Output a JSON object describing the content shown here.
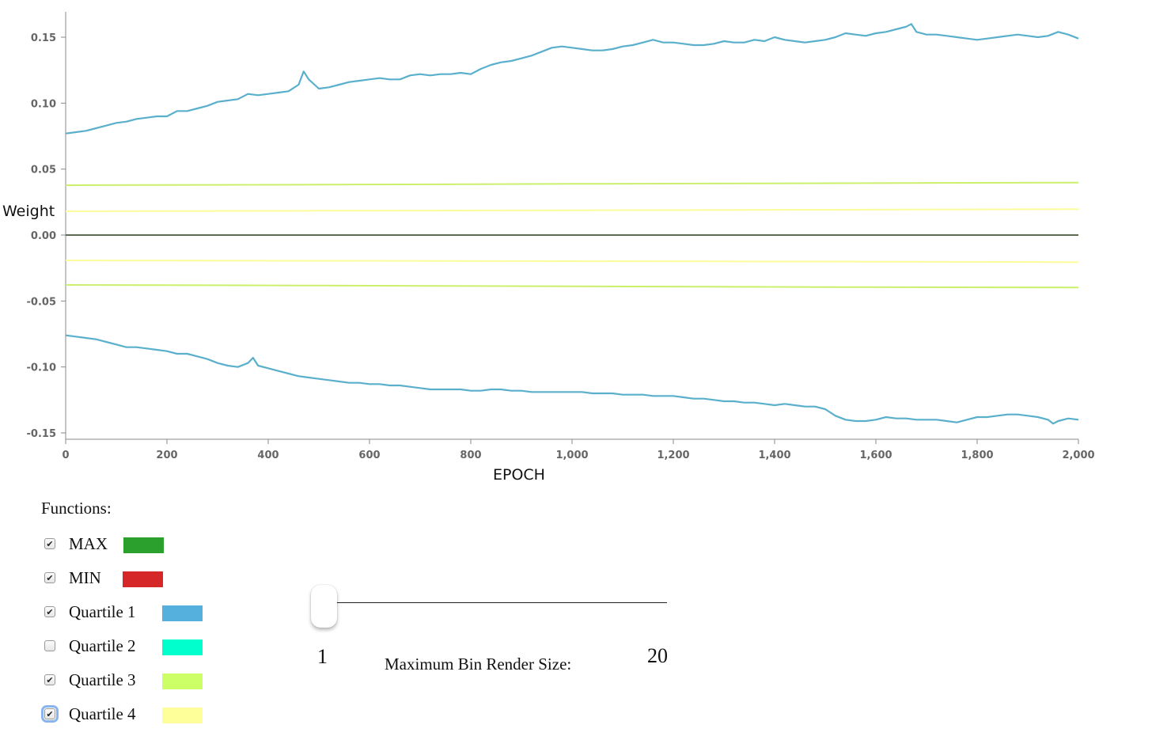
{
  "chart_data": {
    "type": "line",
    "xlabel": "EPOCH",
    "ylabel": "Weight",
    "xlim": [
      0,
      2000
    ],
    "ylim": [
      -0.155,
      0.175
    ],
    "x_ticks": [
      0,
      200,
      400,
      600,
      800,
      1000,
      1200,
      1400,
      1600,
      1800,
      2000
    ],
    "x_tick_labels": [
      "0",
      "200",
      "400",
      "600",
      "800",
      "1,000",
      "1,200",
      "1,400",
      "1,600",
      "1,800",
      "2,000"
    ],
    "y_ticks": [
      -0.15,
      -0.1,
      -0.05,
      0.0,
      0.05,
      0.1,
      0.15
    ],
    "y_tick_labels": [
      "-0.15",
      "-0.10",
      "-0.05",
      "0.00",
      "0.05",
      "0.10",
      "0.15"
    ],
    "grid": false,
    "series": [
      {
        "kind": "quartile1-upper",
        "color": "#5ab0cc",
        "x": [
          0,
          20,
          40,
          60,
          80,
          100,
          120,
          140,
          160,
          180,
          200,
          220,
          240,
          260,
          280,
          300,
          320,
          340,
          360,
          380,
          400,
          420,
          440,
          460,
          470,
          480,
          500,
          520,
          540,
          560,
          580,
          600,
          620,
          640,
          660,
          680,
          700,
          720,
          740,
          760,
          780,
          800,
          820,
          840,
          860,
          880,
          900,
          920,
          940,
          960,
          980,
          1000,
          1020,
          1040,
          1060,
          1080,
          1100,
          1120,
          1140,
          1160,
          1180,
          1200,
          1220,
          1240,
          1260,
          1280,
          1300,
          1320,
          1340,
          1360,
          1380,
          1400,
          1420,
          1440,
          1460,
          1480,
          1500,
          1520,
          1540,
          1560,
          1580,
          1600,
          1620,
          1640,
          1660,
          1670,
          1680,
          1700,
          1720,
          1740,
          1760,
          1780,
          1800,
          1820,
          1840,
          1860,
          1880,
          1900,
          1920,
          1940,
          1960,
          1980,
          2000
        ],
        "y": [
          0.077,
          0.078,
          0.079,
          0.081,
          0.083,
          0.085,
          0.086,
          0.088,
          0.089,
          0.09,
          0.09,
          0.094,
          0.094,
          0.096,
          0.098,
          0.101,
          0.102,
          0.103,
          0.107,
          0.106,
          0.107,
          0.108,
          0.109,
          0.114,
          0.124,
          0.118,
          0.111,
          0.112,
          0.114,
          0.116,
          0.117,
          0.118,
          0.119,
          0.118,
          0.118,
          0.121,
          0.122,
          0.121,
          0.122,
          0.122,
          0.123,
          0.122,
          0.126,
          0.129,
          0.131,
          0.132,
          0.134,
          0.136,
          0.139,
          0.142,
          0.143,
          0.142,
          0.141,
          0.14,
          0.14,
          0.141,
          0.143,
          0.144,
          0.146,
          0.148,
          0.146,
          0.146,
          0.145,
          0.144,
          0.144,
          0.145,
          0.147,
          0.146,
          0.146,
          0.148,
          0.147,
          0.15,
          0.148,
          0.147,
          0.146,
          0.147,
          0.148,
          0.15,
          0.153,
          0.152,
          0.151,
          0.153,
          0.154,
          0.156,
          0.158,
          0.16,
          0.154,
          0.152,
          0.152,
          0.151,
          0.15,
          0.149,
          0.148,
          0.149,
          0.15,
          0.151,
          0.152,
          0.151,
          0.15,
          0.151,
          0.154,
          0.152,
          0.149
        ]
      },
      {
        "kind": "quartile3-upper",
        "color": "#cbf06c",
        "x": [
          0,
          500,
          1000,
          1500,
          2000
        ],
        "y": [
          0.0378,
          0.0382,
          0.0388,
          0.0393,
          0.0398
        ]
      },
      {
        "kind": "quartile4-upper",
        "color": "#fcfc9c",
        "x": [
          0,
          500,
          1000,
          1500,
          2000
        ],
        "y": [
          0.018,
          0.0184,
          0.0188,
          0.0192,
          0.0196
        ]
      },
      {
        "kind": "zero-line",
        "color": "#5c6b52",
        "x": [
          0,
          2000
        ],
        "y": [
          0.0,
          0.0
        ]
      },
      {
        "kind": "quartile4-lower",
        "color": "#fcfc9c",
        "x": [
          0,
          500,
          1000,
          1500,
          2000
        ],
        "y": [
          -0.0192,
          -0.0195,
          -0.0198,
          -0.0201,
          -0.0205
        ]
      },
      {
        "kind": "quartile3-lower",
        "color": "#cbf06c",
        "x": [
          0,
          500,
          1000,
          1500,
          2000
        ],
        "y": [
          -0.0378,
          -0.0383,
          -0.0389,
          -0.0394,
          -0.0398
        ]
      },
      {
        "kind": "quartile1-lower",
        "color": "#5ab0cc",
        "x": [
          0,
          20,
          40,
          60,
          80,
          100,
          120,
          140,
          160,
          180,
          200,
          220,
          240,
          260,
          280,
          300,
          320,
          340,
          360,
          370,
          380,
          400,
          420,
          440,
          460,
          480,
          500,
          520,
          540,
          560,
          580,
          600,
          620,
          640,
          660,
          680,
          700,
          720,
          740,
          760,
          780,
          800,
          820,
          840,
          860,
          880,
          900,
          920,
          940,
          960,
          980,
          1000,
          1020,
          1040,
          1060,
          1080,
          1100,
          1120,
          1140,
          1160,
          1180,
          1200,
          1220,
          1240,
          1260,
          1280,
          1300,
          1320,
          1340,
          1360,
          1380,
          1400,
          1420,
          1440,
          1460,
          1480,
          1500,
          1520,
          1540,
          1560,
          1580,
          1600,
          1620,
          1640,
          1660,
          1680,
          1700,
          1720,
          1740,
          1760,
          1780,
          1800,
          1820,
          1840,
          1860,
          1880,
          1900,
          1920,
          1940,
          1950,
          1960,
          1980,
          2000
        ],
        "y": [
          -0.076,
          -0.077,
          -0.078,
          -0.079,
          -0.081,
          -0.083,
          -0.085,
          -0.085,
          -0.086,
          -0.087,
          -0.088,
          -0.09,
          -0.09,
          -0.092,
          -0.094,
          -0.097,
          -0.099,
          -0.1,
          -0.097,
          -0.093,
          -0.099,
          -0.101,
          -0.103,
          -0.105,
          -0.107,
          -0.108,
          -0.109,
          -0.11,
          -0.111,
          -0.112,
          -0.112,
          -0.113,
          -0.113,
          -0.114,
          -0.114,
          -0.115,
          -0.116,
          -0.117,
          -0.117,
          -0.117,
          -0.117,
          -0.118,
          -0.118,
          -0.117,
          -0.117,
          -0.118,
          -0.118,
          -0.119,
          -0.119,
          -0.119,
          -0.119,
          -0.119,
          -0.119,
          -0.12,
          -0.12,
          -0.12,
          -0.121,
          -0.121,
          -0.121,
          -0.122,
          -0.122,
          -0.122,
          -0.123,
          -0.124,
          -0.124,
          -0.125,
          -0.126,
          -0.126,
          -0.127,
          -0.127,
          -0.128,
          -0.129,
          -0.128,
          -0.129,
          -0.13,
          -0.13,
          -0.132,
          -0.137,
          -0.14,
          -0.141,
          -0.141,
          -0.14,
          -0.138,
          -0.139,
          -0.139,
          -0.14,
          -0.14,
          -0.14,
          -0.141,
          -0.142,
          -0.14,
          -0.138,
          -0.138,
          -0.137,
          -0.136,
          -0.136,
          -0.137,
          -0.138,
          -0.14,
          -0.143,
          -0.141,
          -0.139,
          -0.14
        ]
      }
    ]
  },
  "functions": {
    "label": "Functions:",
    "items": [
      {
        "key": "max",
        "label": "MAX",
        "checked": true,
        "color": "#2ca02c"
      },
      {
        "key": "min",
        "label": "MIN",
        "checked": true,
        "color": "#d62728"
      },
      {
        "key": "quartile-1",
        "label": "Quartile 1",
        "checked": true,
        "color": "#55b0de"
      },
      {
        "key": "quartile-2",
        "label": "Quartile 2",
        "checked": false,
        "color": "#00ffcc"
      },
      {
        "key": "quartile-3",
        "label": "Quartile 3",
        "checked": true,
        "color": "#ccff66"
      },
      {
        "key": "quartile-4",
        "label": "Quartile 4",
        "checked": true,
        "color": "#ffff99",
        "focused": true
      }
    ]
  },
  "slider": {
    "min_label": "1",
    "max_label": "20",
    "caption": "Maximum Bin Render Size:",
    "value": 1
  }
}
